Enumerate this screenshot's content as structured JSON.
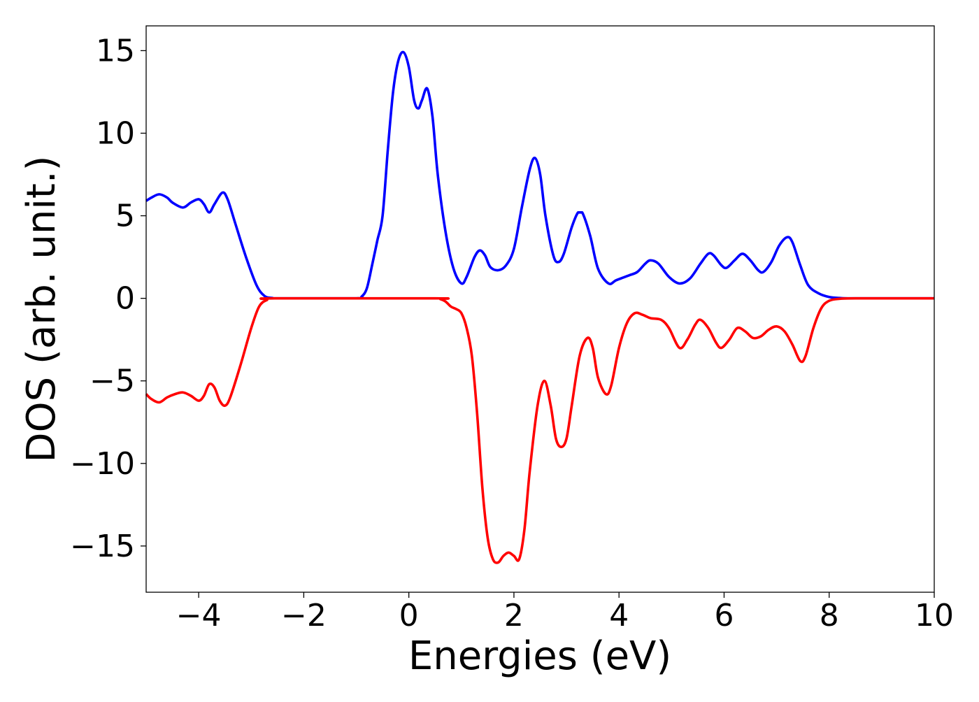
{
  "chart_data": {
    "type": "line",
    "title": "",
    "xlabel": "Energies (eV)",
    "ylabel": "DOS (arb. unit.)",
    "xlim": [
      -5,
      10
    ],
    "ylim": [
      -17.8,
      16.5
    ],
    "x_ticks": [
      -4,
      -2,
      0,
      2,
      4,
      6,
      8,
      10
    ],
    "x_tick_labels": [
      "−4",
      "−2",
      "0",
      "2",
      "4",
      "6",
      "8",
      "10"
    ],
    "y_ticks": [
      15,
      10,
      5,
      0,
      -5,
      -10,
      -15
    ],
    "y_tick_labels": [
      "15",
      "10",
      "5",
      "0",
      "−5",
      "−10",
      "−15"
    ],
    "grid": false,
    "legend": "none",
    "series": [
      {
        "color": "#0000ff",
        "points": [
          [
            -5.0,
            5.9
          ],
          [
            -4.9,
            6.1
          ],
          [
            -4.75,
            6.3
          ],
          [
            -4.6,
            6.1
          ],
          [
            -4.5,
            5.8
          ],
          [
            -4.3,
            5.5
          ],
          [
            -4.15,
            5.8
          ],
          [
            -4.0,
            6.0
          ],
          [
            -3.9,
            5.7
          ],
          [
            -3.8,
            5.2
          ],
          [
            -3.7,
            5.7
          ],
          [
            -3.55,
            6.4
          ],
          [
            -3.45,
            6.0
          ],
          [
            -3.3,
            4.5
          ],
          [
            -3.1,
            2.5
          ],
          [
            -2.9,
            0.8
          ],
          [
            -2.75,
            0.15
          ],
          [
            -2.6,
            0.02
          ],
          [
            -2.4,
            0.0
          ],
          [
            -1.0,
            0.0
          ],
          [
            -0.9,
            0.1
          ],
          [
            -0.8,
            0.6
          ],
          [
            -0.7,
            2.0
          ],
          [
            -0.6,
            3.5
          ],
          [
            -0.5,
            5.0
          ],
          [
            -0.4,
            9.0
          ],
          [
            -0.3,
            12.5
          ],
          [
            -0.2,
            14.4
          ],
          [
            -0.1,
            14.9
          ],
          [
            0.0,
            14.0
          ],
          [
            0.1,
            12.0
          ],
          [
            0.18,
            11.5
          ],
          [
            0.25,
            12.0
          ],
          [
            0.35,
            12.7
          ],
          [
            0.45,
            11.0
          ],
          [
            0.55,
            7.5
          ],
          [
            0.7,
            4.0
          ],
          [
            0.85,
            1.8
          ],
          [
            1.0,
            0.9
          ],
          [
            1.1,
            1.3
          ],
          [
            1.25,
            2.5
          ],
          [
            1.35,
            2.9
          ],
          [
            1.45,
            2.6
          ],
          [
            1.55,
            1.9
          ],
          [
            1.7,
            1.7
          ],
          [
            1.85,
            2.0
          ],
          [
            2.0,
            3.0
          ],
          [
            2.15,
            5.5
          ],
          [
            2.3,
            7.8
          ],
          [
            2.4,
            8.5
          ],
          [
            2.5,
            7.5
          ],
          [
            2.6,
            5.0
          ],
          [
            2.75,
            2.6
          ],
          [
            2.85,
            2.2
          ],
          [
            2.95,
            2.7
          ],
          [
            3.1,
            4.3
          ],
          [
            3.22,
            5.2
          ],
          [
            3.3,
            5.2
          ],
          [
            3.45,
            3.8
          ],
          [
            3.6,
            1.8
          ],
          [
            3.8,
            0.9
          ],
          [
            3.95,
            1.1
          ],
          [
            4.2,
            1.4
          ],
          [
            4.35,
            1.6
          ],
          [
            4.5,
            2.1
          ],
          [
            4.6,
            2.3
          ],
          [
            4.75,
            2.1
          ],
          [
            4.95,
            1.3
          ],
          [
            5.15,
            0.9
          ],
          [
            5.35,
            1.2
          ],
          [
            5.55,
            2.1
          ],
          [
            5.7,
            2.7
          ],
          [
            5.8,
            2.6
          ],
          [
            5.95,
            2.0
          ],
          [
            6.05,
            1.85
          ],
          [
            6.2,
            2.3
          ],
          [
            6.35,
            2.7
          ],
          [
            6.5,
            2.3
          ],
          [
            6.65,
            1.7
          ],
          [
            6.75,
            1.6
          ],
          [
            6.9,
            2.2
          ],
          [
            7.05,
            3.2
          ],
          [
            7.2,
            3.7
          ],
          [
            7.3,
            3.4
          ],
          [
            7.45,
            2.0
          ],
          [
            7.6,
            0.8
          ],
          [
            7.8,
            0.3
          ],
          [
            8.0,
            0.08
          ],
          [
            8.2,
            0.02
          ],
          [
            8.5,
            0.0
          ],
          [
            10.0,
            0.0
          ]
        ]
      },
      {
        "color": "#ff0000",
        "points": [
          [
            -5.0,
            -5.8
          ],
          [
            -4.9,
            -6.1
          ],
          [
            -4.75,
            -6.3
          ],
          [
            -4.6,
            -6.0
          ],
          [
            -4.45,
            -5.8
          ],
          [
            -4.3,
            -5.7
          ],
          [
            -4.15,
            -5.9
          ],
          [
            -4.0,
            -6.2
          ],
          [
            -3.9,
            -5.9
          ],
          [
            -3.8,
            -5.2
          ],
          [
            -3.7,
            -5.4
          ],
          [
            -3.6,
            -6.2
          ],
          [
            -3.5,
            -6.5
          ],
          [
            -3.4,
            -6.0
          ],
          [
            -3.2,
            -4.0
          ],
          [
            -3.0,
            -1.8
          ],
          [
            -2.85,
            -0.5
          ],
          [
            -2.7,
            -0.1
          ],
          [
            -2.55,
            0.0
          ],
          [
            0.5,
            0.0
          ],
          [
            0.6,
            -0.05
          ],
          [
            0.7,
            -0.2
          ],
          [
            0.8,
            -0.5
          ],
          [
            0.9,
            -0.65
          ],
          [
            1.0,
            -0.9
          ],
          [
            1.1,
            -1.8
          ],
          [
            1.2,
            -3.5
          ],
          [
            1.3,
            -7.0
          ],
          [
            1.4,
            -11.5
          ],
          [
            1.5,
            -14.5
          ],
          [
            1.6,
            -15.8
          ],
          [
            1.7,
            -16.0
          ],
          [
            1.8,
            -15.6
          ],
          [
            1.9,
            -15.4
          ],
          [
            2.0,
            -15.6
          ],
          [
            2.1,
            -15.8
          ],
          [
            2.2,
            -14.0
          ],
          [
            2.3,
            -10.5
          ],
          [
            2.45,
            -6.5
          ],
          [
            2.58,
            -5.0
          ],
          [
            2.7,
            -6.5
          ],
          [
            2.8,
            -8.5
          ],
          [
            2.9,
            -9.0
          ],
          [
            3.0,
            -8.5
          ],
          [
            3.1,
            -6.5
          ],
          [
            3.25,
            -3.5
          ],
          [
            3.4,
            -2.4
          ],
          [
            3.5,
            -3.0
          ],
          [
            3.6,
            -4.8
          ],
          [
            3.75,
            -5.8
          ],
          [
            3.85,
            -5.3
          ],
          [
            4.0,
            -3.0
          ],
          [
            4.15,
            -1.5
          ],
          [
            4.3,
            -0.9
          ],
          [
            4.45,
            -1.0
          ],
          [
            4.6,
            -1.2
          ],
          [
            4.8,
            -1.3
          ],
          [
            4.95,
            -1.8
          ],
          [
            5.15,
            -3.0
          ],
          [
            5.3,
            -2.5
          ],
          [
            5.45,
            -1.6
          ],
          [
            5.55,
            -1.3
          ],
          [
            5.7,
            -1.8
          ],
          [
            5.85,
            -2.7
          ],
          [
            5.95,
            -3.0
          ],
          [
            6.1,
            -2.5
          ],
          [
            6.25,
            -1.8
          ],
          [
            6.4,
            -2.0
          ],
          [
            6.55,
            -2.4
          ],
          [
            6.7,
            -2.3
          ],
          [
            6.85,
            -1.9
          ],
          [
            7.0,
            -1.7
          ],
          [
            7.15,
            -2.0
          ],
          [
            7.3,
            -2.8
          ],
          [
            7.45,
            -3.8
          ],
          [
            7.55,
            -3.5
          ],
          [
            7.7,
            -1.8
          ],
          [
            7.85,
            -0.6
          ],
          [
            8.0,
            -0.15
          ],
          [
            8.2,
            -0.03
          ],
          [
            8.5,
            0.0
          ],
          [
            10.0,
            0.0
          ]
        ]
      }
    ]
  }
}
